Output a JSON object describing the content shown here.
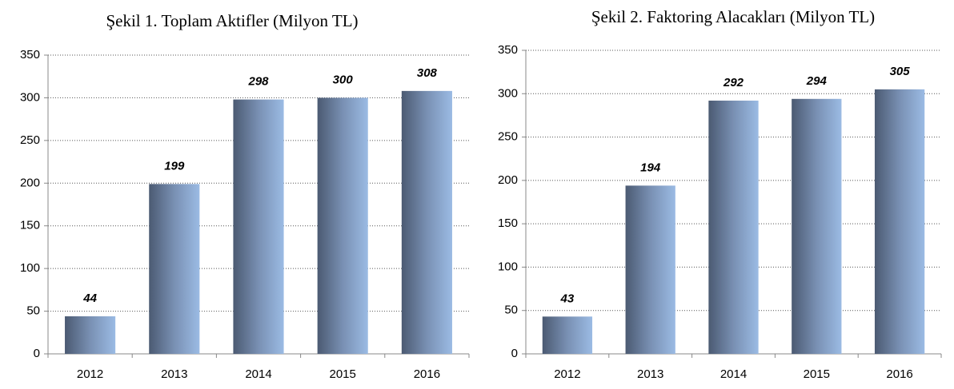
{
  "chart_data": [
    {
      "type": "bar",
      "title": "Şekil 1. Toplam Aktifler (Milyon TL)",
      "categories": [
        "2012",
        "2013",
        "2014",
        "2015",
        "2016"
      ],
      "values": [
        44,
        199,
        298,
        300,
        308
      ],
      "ylim": [
        0,
        350
      ],
      "yticks": [
        0,
        50,
        100,
        150,
        200,
        250,
        300,
        350
      ],
      "grid": true
    },
    {
      "type": "bar",
      "title": "Şekil 2. Faktoring Alacakları (Milyon TL)",
      "categories": [
        "2012",
        "2013",
        "2014",
        "2015",
        "2016"
      ],
      "values": [
        43,
        194,
        292,
        294,
        305
      ],
      "ylim": [
        0,
        350
      ],
      "yticks": [
        0,
        50,
        100,
        150,
        200,
        250,
        300,
        350
      ],
      "grid": true
    }
  ]
}
